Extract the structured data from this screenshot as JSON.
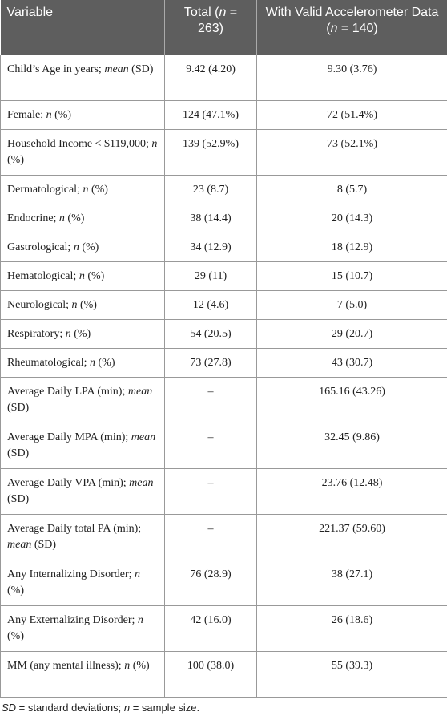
{
  "table": {
    "header": [
      [
        "Variable"
      ],
      [
        "Total (",
        {
          "italic": "n"
        },
        " = 263)"
      ],
      [
        "With Valid Accelerometer Data (",
        {
          "italic": "n"
        },
        " = 140)"
      ]
    ],
    "rows": [
      [
        [
          "Child’s Age in years; ",
          {
            "italic": "mean"
          },
          " (SD)"
        ],
        [
          "9.42 (4.20)"
        ],
        [
          "9.30 (3.76)"
        ]
      ],
      [
        [
          "Female; ",
          {
            "italic": "n"
          },
          " (%)"
        ],
        [
          "124 (47.1%)"
        ],
        [
          "72 (51.4%)"
        ]
      ],
      [
        [
          "Household Income < $119,000; ",
          {
            "italic": "n"
          },
          " (%)"
        ],
        [
          "139 (52.9%)"
        ],
        [
          "73 (52.1%)"
        ]
      ],
      [
        [
          "Dermatological; ",
          {
            "italic": "n"
          },
          " (%)"
        ],
        [
          "23 (8.7)"
        ],
        [
          "8 (5.7)"
        ]
      ],
      [
        [
          "Endocrine; ",
          {
            "italic": "n"
          },
          " (%)"
        ],
        [
          "38 (14.4)"
        ],
        [
          "20 (14.3)"
        ]
      ],
      [
        [
          "Gastrological; ",
          {
            "italic": "n"
          },
          " (%)"
        ],
        [
          "34 (12.9)"
        ],
        [
          "18 (12.9)"
        ]
      ],
      [
        [
          "Hematological; ",
          {
            "italic": "n"
          },
          " (%)"
        ],
        [
          "29 (11)"
        ],
        [
          "15 (10.7)"
        ]
      ],
      [
        [
          "Neurological; ",
          {
            "italic": "n"
          },
          " (%)"
        ],
        [
          "12 (4.6)"
        ],
        [
          "7 (5.0)"
        ]
      ],
      [
        [
          "Respiratory; ",
          {
            "italic": "n"
          },
          " (%)"
        ],
        [
          "54 (20.5)"
        ],
        [
          "29 (20.7)"
        ]
      ],
      [
        [
          "Rheumatological; ",
          {
            "italic": "n"
          },
          " (%)"
        ],
        [
          "73 (27.8)"
        ],
        [
          "43 (30.7)"
        ]
      ],
      [
        [
          "Average Daily LPA (min); ",
          {
            "italic": "mean"
          },
          " (SD)"
        ],
        [
          "–"
        ],
        [
          "165.16 (43.26)"
        ]
      ],
      [
        [
          "Average Daily MPA (min); ",
          {
            "italic": "mean"
          },
          " (SD)"
        ],
        [
          "–"
        ],
        [
          "32.45 (9.86)"
        ]
      ],
      [
        [
          "Average Daily VPA (min); ",
          {
            "italic": "mean"
          },
          " (SD)"
        ],
        [
          "–"
        ],
        [
          "23.76 (12.48)"
        ]
      ],
      [
        [
          "Average Daily total PA (min); ",
          {
            "italic": "mean"
          },
          " (SD)"
        ],
        [
          "–"
        ],
        [
          "221.37 (59.60)"
        ]
      ],
      [
        [
          "Any Internalizing Disorder; ",
          {
            "italic": "n"
          },
          " (%)"
        ],
        [
          "76 (28.9)"
        ],
        [
          "38 (27.1)"
        ]
      ],
      [
        [
          "Any Externalizing Disorder; ",
          {
            "italic": "n"
          },
          " (%)"
        ],
        [
          "42 (16.0)"
        ],
        [
          "26 (18.6)"
        ]
      ],
      [
        [
          "MM (any mental illness); ",
          {
            "italic": "n"
          },
          " (%)"
        ],
        [
          "100 (38.0)"
        ],
        [
          "55 (39.3)"
        ]
      ]
    ],
    "footnote": [
      {
        "italic": "SD"
      },
      " = standard deviations; ",
      {
        "italic": "n"
      },
      " = sample size."
    ]
  }
}
